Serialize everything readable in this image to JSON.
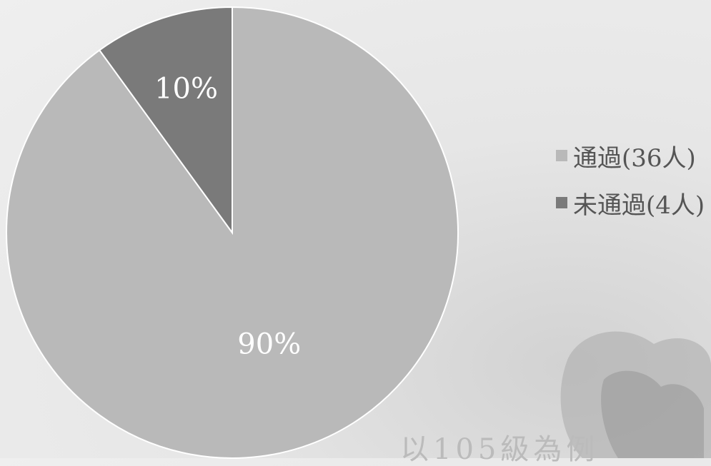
{
  "chart_data": {
    "type": "pie",
    "title": "",
    "slices": [
      {
        "label": "通過(36人)",
        "value": 36,
        "percent_label": "90%",
        "color": "#b9b9b9"
      },
      {
        "label": "未通過(4人)",
        "value": 4,
        "percent_label": "10%",
        "color": "#7a7a7a"
      }
    ],
    "start_angle": "12 o'clock, clockwise",
    "legend_position": "right"
  },
  "footer": {
    "text": "以105級為例"
  }
}
